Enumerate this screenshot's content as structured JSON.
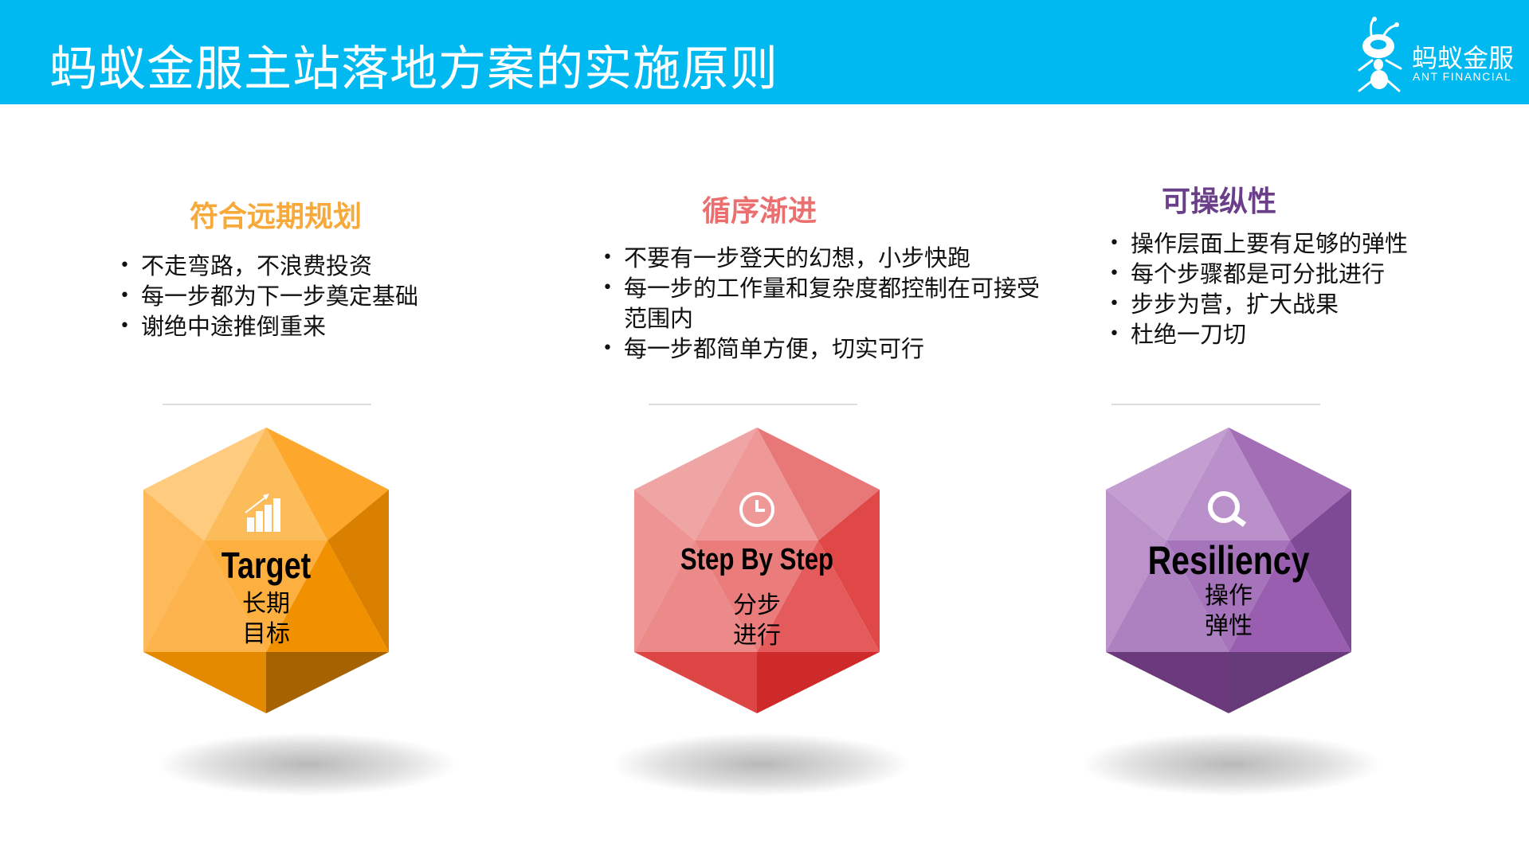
{
  "header": {
    "title": "蚂蚁金服主站落地方案的实施原则",
    "background": "#00B9F1"
  },
  "logo": {
    "cn": "蚂蚁金服",
    "en": "ANT FINANCIAL"
  },
  "columns": [
    {
      "heading": "符合远期规划",
      "color": "#F7A93A",
      "bullets": [
        "不走弯路，不浪费投资",
        "每一步都为下一步奠定基础",
        "谢绝中途推倒重来"
      ],
      "hex": {
        "en": "Target",
        "cn1": "长期",
        "cn2": "目标",
        "icon": "bar-chart-growth-icon",
        "facets": [
          "#FECB7F",
          "#FDBC5A",
          "#FDA82C",
          "#FDB95A",
          "#D98000",
          "#FDB44E",
          "#FDB040",
          "#F29100",
          "#E38A00",
          "#A66200"
        ]
      }
    },
    {
      "heading": "循序渐进",
      "color": "#EB6F6F",
      "bullets": [
        "不要有一步登天的幻想，小步快跑",
        "每一步的工作量和复杂度都控制在可接受范围内",
        "每一步都简单方便，切实可行"
      ],
      "hex": {
        "en": "Step By Step",
        "cn1": "分步",
        "cn2": "进行",
        "icon": "clock-icon",
        "facets": [
          "#F0A5A5",
          "#EE9898",
          "#E87777",
          "#EE9494",
          "#E04848",
          "#EC8A8A",
          "#EA7C7C",
          "#E55B5B",
          "#DE4545",
          "#CF2A2A"
        ]
      }
    },
    {
      "heading": "可操纵性",
      "color": "#6B3E8A",
      "bullets": [
        "操作层面上要有足够的弹性",
        "每个步骤都是可分批进行",
        "步步为营，扩大战果",
        "杜绝一刀切"
      ],
      "hex": {
        "en": "Resiliency",
        "cn1": "操作",
        "cn2": "弹性",
        "icon": "magnifier-icon",
        "facets": [
          "#C49ED0",
          "#B990C9",
          "#A46EB7",
          "#BB92CA",
          "#7E4A95",
          "#AD80C0",
          "#A574BA",
          "#9A5EB0",
          "#6A3A7D",
          "#673A7A"
        ]
      }
    }
  ]
}
